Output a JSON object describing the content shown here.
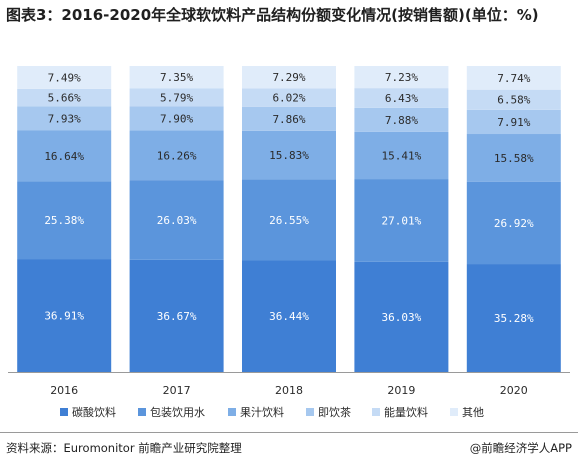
{
  "title": "图表3：2016-2020年全球软饮料产品结构份额变化情况(按销售额)(单位：%)",
  "footer": {
    "source": "资料来源：Euromonitor 前瞻产业研究院整理",
    "brand": "@前瞻经济学人APP"
  },
  "colors": {
    "碳酸饮料": "#3f7fd4",
    "包装饮用水": "#5b95dc",
    "果汁饮料": "#7eaee6",
    "即饮茶": "#a6c8ef",
    "能量饮料": "#c5dbf5",
    "其他": "#e0ecfa"
  },
  "chart_data": {
    "type": "bar",
    "stacked": true,
    "categories": [
      "2016",
      "2017",
      "2018",
      "2019",
      "2020"
    ],
    "series": [
      {
        "name": "碳酸饮料",
        "values": [
          36.91,
          36.67,
          36.44,
          36.03,
          35.28
        ]
      },
      {
        "name": "包装饮用水",
        "values": [
          25.38,
          26.03,
          26.55,
          27.01,
          26.92
        ]
      },
      {
        "name": "果汁饮料",
        "values": [
          16.64,
          16.26,
          15.83,
          15.41,
          15.58
        ]
      },
      {
        "name": "即饮茶",
        "values": [
          7.93,
          7.9,
          7.86,
          7.88,
          7.91
        ]
      },
      {
        "name": "能量饮料",
        "values": [
          5.66,
          5.79,
          6.02,
          6.43,
          6.58
        ]
      },
      {
        "name": "其他",
        "values": [
          7.49,
          7.35,
          7.29,
          7.23,
          7.74
        ]
      }
    ],
    "value_labels": [
      [
        "36.91%",
        "36.67%",
        "36.44%",
        "36.03%",
        "35.28%"
      ],
      [
        "25.38%",
        "26.03%",
        "26.55%",
        "27.01%",
        "26.92%"
      ],
      [
        "16.64%",
        "16.26%",
        "15.83%",
        "15.41%",
        "15.58%"
      ],
      [
        "7.93%",
        "7.90%",
        "7.86%",
        "7.88%",
        "7.91%"
      ],
      [
        "5.66%",
        "5.79%",
        "6.02%",
        "6.43%",
        "6.58%"
      ],
      [
        "7.49%",
        "7.35%",
        "7.29%",
        "7.23%",
        "7.74%"
      ]
    ],
    "ylim": [
      0,
      100
    ],
    "legend_position": "bottom",
    "grid": false
  }
}
